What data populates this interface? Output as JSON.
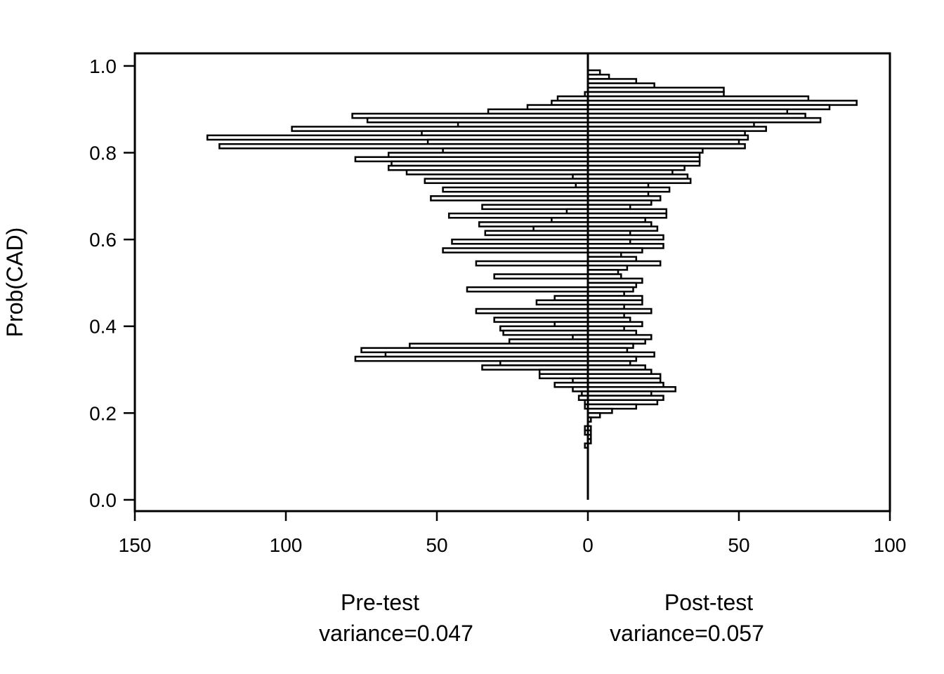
{
  "chart_data": {
    "type": "bar",
    "orientation": "horizontal-back-to-back",
    "title": "",
    "ylabel": "Prob(CAD)",
    "ylim": [
      -0.026,
      1.029
    ],
    "xlim": [
      -150,
      100
    ],
    "y_ticks": [
      0.0,
      0.2,
      0.4,
      0.6,
      0.8,
      1.0
    ],
    "y_tick_labels": [
      "0.0",
      "0.2",
      "0.4",
      "0.6",
      "0.8",
      "1.0"
    ],
    "x_ticks": [
      -150,
      -100,
      -50,
      0,
      50,
      100
    ],
    "x_tick_labels": [
      "150",
      "100",
      "50",
      "0",
      "50",
      "100"
    ],
    "bin_width": 0.01,
    "series": [
      {
        "name": "Pre-test",
        "caption": "variance=0.047",
        "side": "left",
        "bins": [
          [
            0.93,
            1
          ],
          [
            0.92,
            10
          ],
          [
            0.91,
            12
          ],
          [
            0.9,
            20
          ],
          [
            0.89,
            33
          ],
          [
            0.88,
            78
          ],
          [
            0.87,
            73
          ],
          [
            0.86,
            43
          ],
          [
            0.85,
            98
          ],
          [
            0.84,
            55
          ],
          [
            0.83,
            126
          ],
          [
            0.82,
            53
          ],
          [
            0.81,
            122
          ],
          [
            0.8,
            48
          ],
          [
            0.79,
            66
          ],
          [
            0.78,
            77
          ],
          [
            0.77,
            65
          ],
          [
            0.76,
            66
          ],
          [
            0.75,
            60
          ],
          [
            0.74,
            5
          ],
          [
            0.73,
            54
          ],
          [
            0.72,
            4
          ],
          [
            0.71,
            48
          ],
          [
            0.7,
            0
          ],
          [
            0.69,
            52
          ],
          [
            0.68,
            0
          ],
          [
            0.67,
            35
          ],
          [
            0.66,
            7
          ],
          [
            0.65,
            46
          ],
          [
            0.64,
            12
          ],
          [
            0.63,
            36
          ],
          [
            0.62,
            18
          ],
          [
            0.61,
            34
          ],
          [
            0.6,
            0
          ],
          [
            0.59,
            45
          ],
          [
            0.58,
            0
          ],
          [
            0.57,
            48
          ],
          [
            0.56,
            0
          ],
          [
            0.55,
            0
          ],
          [
            0.54,
            37
          ],
          [
            0.53,
            0
          ],
          [
            0.52,
            0
          ],
          [
            0.51,
            31
          ],
          [
            0.5,
            0
          ],
          [
            0.49,
            0
          ],
          [
            0.48,
            40
          ],
          [
            0.47,
            0
          ],
          [
            0.46,
            11
          ],
          [
            0.45,
            17
          ],
          [
            0.44,
            0
          ],
          [
            0.43,
            37
          ],
          [
            0.42,
            0
          ],
          [
            0.41,
            31
          ],
          [
            0.4,
            11
          ],
          [
            0.39,
            29
          ],
          [
            0.38,
            28
          ],
          [
            0.37,
            5
          ],
          [
            0.36,
            26
          ],
          [
            0.35,
            59
          ],
          [
            0.34,
            75
          ],
          [
            0.33,
            67
          ],
          [
            0.32,
            77
          ],
          [
            0.31,
            29
          ],
          [
            0.3,
            35
          ],
          [
            0.29,
            16
          ],
          [
            0.28,
            16
          ],
          [
            0.27,
            5
          ],
          [
            0.26,
            11
          ],
          [
            0.25,
            5
          ],
          [
            0.24,
            2
          ],
          [
            0.23,
            3
          ],
          [
            0.22,
            1
          ],
          [
            0.21,
            1
          ],
          [
            0.2,
            0
          ],
          [
            0.16,
            1
          ],
          [
            0.15,
            1
          ],
          [
            0.12,
            1
          ]
        ]
      },
      {
        "name": "Post-test",
        "caption": "variance=0.057",
        "side": "right",
        "bins": [
          [
            0.98,
            4
          ],
          [
            0.97,
            7
          ],
          [
            0.96,
            16
          ],
          [
            0.95,
            22
          ],
          [
            0.94,
            45
          ],
          [
            0.93,
            45
          ],
          [
            0.92,
            73
          ],
          [
            0.91,
            89
          ],
          [
            0.9,
            80
          ],
          [
            0.89,
            66
          ],
          [
            0.88,
            72
          ],
          [
            0.87,
            77
          ],
          [
            0.86,
            55
          ],
          [
            0.85,
            59
          ],
          [
            0.84,
            52
          ],
          [
            0.83,
            53
          ],
          [
            0.82,
            50
          ],
          [
            0.81,
            52
          ],
          [
            0.8,
            38
          ],
          [
            0.79,
            37
          ],
          [
            0.78,
            37
          ],
          [
            0.77,
            37
          ],
          [
            0.76,
            32
          ],
          [
            0.75,
            28
          ],
          [
            0.74,
            33
          ],
          [
            0.73,
            34
          ],
          [
            0.72,
            20
          ],
          [
            0.71,
            27
          ],
          [
            0.7,
            20
          ],
          [
            0.69,
            24
          ],
          [
            0.68,
            21
          ],
          [
            0.67,
            14
          ],
          [
            0.66,
            26
          ],
          [
            0.65,
            26
          ],
          [
            0.64,
            19
          ],
          [
            0.63,
            21
          ],
          [
            0.62,
            23
          ],
          [
            0.61,
            14
          ],
          [
            0.6,
            25
          ],
          [
            0.59,
            14
          ],
          [
            0.58,
            25
          ],
          [
            0.57,
            18
          ],
          [
            0.56,
            11
          ],
          [
            0.55,
            16
          ],
          [
            0.54,
            24
          ],
          [
            0.53,
            13
          ],
          [
            0.52,
            10
          ],
          [
            0.51,
            11
          ],
          [
            0.5,
            18
          ],
          [
            0.49,
            16
          ],
          [
            0.48,
            15
          ],
          [
            0.47,
            12
          ],
          [
            0.46,
            18
          ],
          [
            0.45,
            18
          ],
          [
            0.44,
            12
          ],
          [
            0.43,
            21
          ],
          [
            0.42,
            12
          ],
          [
            0.41,
            14
          ],
          [
            0.4,
            18
          ],
          [
            0.39,
            12
          ],
          [
            0.38,
            16
          ],
          [
            0.37,
            21
          ],
          [
            0.36,
            19
          ],
          [
            0.35,
            15
          ],
          [
            0.34,
            13
          ],
          [
            0.33,
            22
          ],
          [
            0.32,
            16
          ],
          [
            0.31,
            14
          ],
          [
            0.3,
            19
          ],
          [
            0.29,
            21
          ],
          [
            0.28,
            24
          ],
          [
            0.27,
            24
          ],
          [
            0.26,
            25
          ],
          [
            0.25,
            29
          ],
          [
            0.24,
            21
          ],
          [
            0.23,
            25
          ],
          [
            0.22,
            23
          ],
          [
            0.21,
            16
          ],
          [
            0.2,
            8
          ],
          [
            0.19,
            4
          ],
          [
            0.18,
            1
          ],
          [
            0.16,
            1
          ],
          [
            0.15,
            1
          ],
          [
            0.14,
            1
          ],
          [
            0.13,
            1
          ]
        ]
      }
    ],
    "grid": false,
    "legend": "none",
    "bar_fill": "#ffffff",
    "bar_stroke": "#000000"
  }
}
